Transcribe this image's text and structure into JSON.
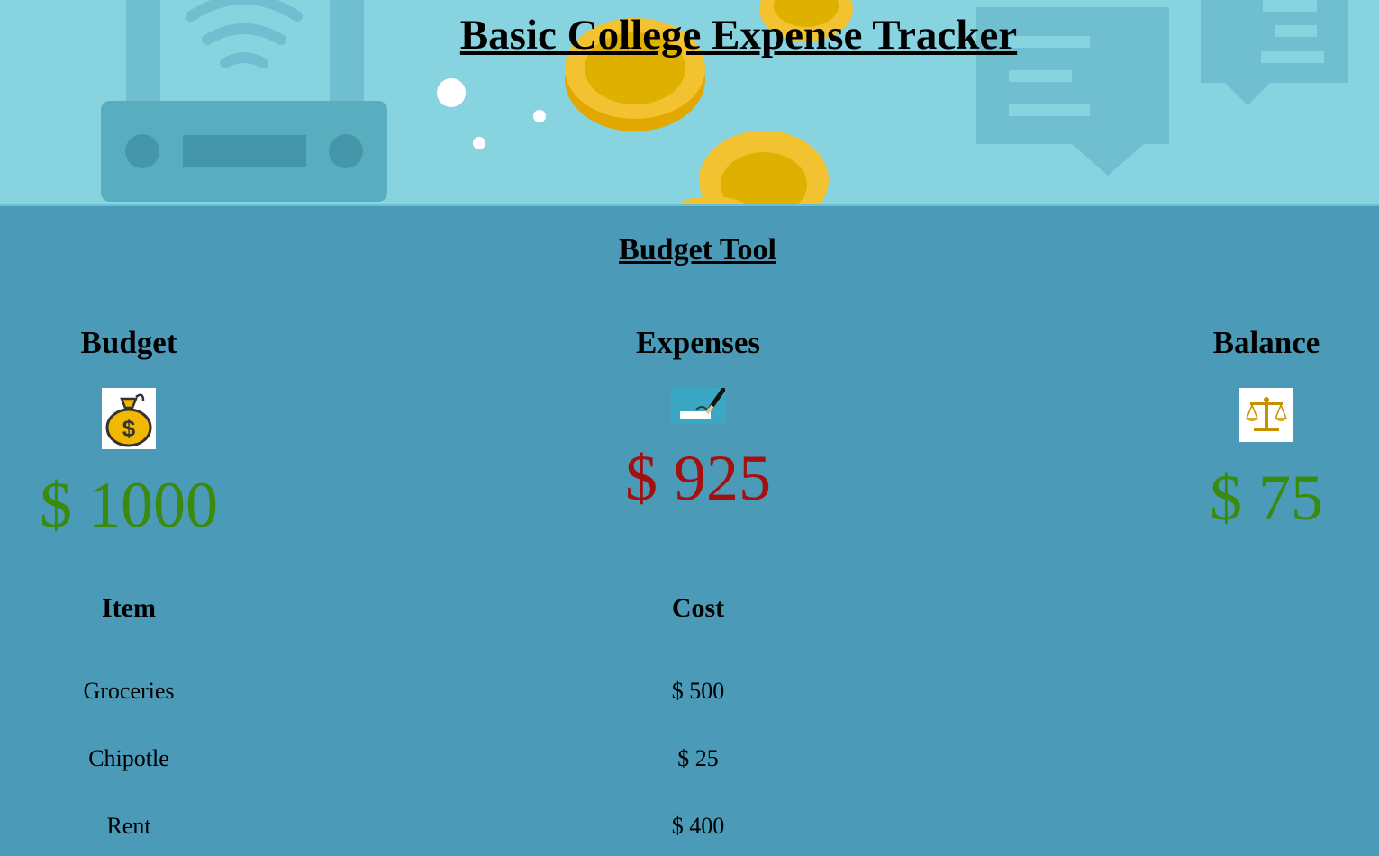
{
  "header": {
    "title": "Basic College Expense Tracker"
  },
  "budget_tool": {
    "title": "Budget Tool",
    "budget": {
      "label": "Budget",
      "value": "$ 1000",
      "icon": "money-bag-icon",
      "color": "#3a8a0c"
    },
    "expenses": {
      "label": "Expenses",
      "value": "$ 925",
      "icon": "signing-pen-icon",
      "color": "#a31010"
    },
    "balance": {
      "label": "Balance",
      "value": "$ 75",
      "icon": "scales-icon",
      "color": "#3a8a0c"
    }
  },
  "expense_table": {
    "headers": {
      "item": "Item",
      "cost": "Cost"
    },
    "rows": [
      {
        "item": "Groceries",
        "cost": "$ 500"
      },
      {
        "item": "Chipotle",
        "cost": "$ 25"
      },
      {
        "item": "Rent",
        "cost": "$ 400"
      }
    ]
  },
  "colors": {
    "banner_background": "#87d3e0",
    "main_background": "#4a9ab8",
    "positive": "#3a8a0c",
    "negative": "#a31010"
  }
}
